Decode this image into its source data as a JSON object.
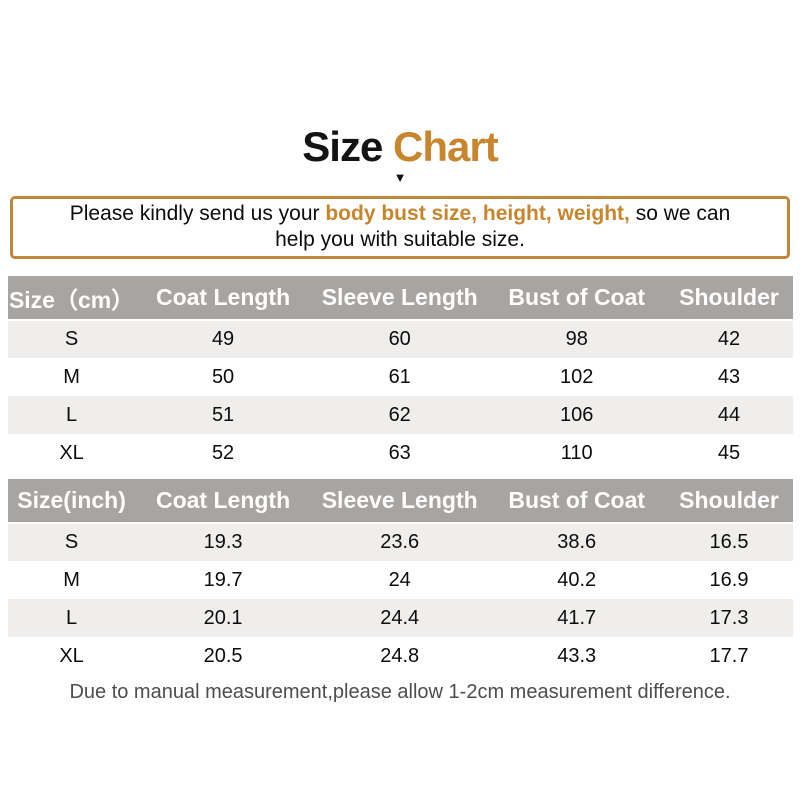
{
  "title": {
    "part1": "Size",
    "part2": "Chart"
  },
  "icons": {
    "down_arrow": "▼"
  },
  "colors": {
    "accent_orange": "#C7862E",
    "box_border": "#C0883F",
    "header_bg": "#A8A4A1",
    "alt_row_bg": "#EFEEEC",
    "footer_text": "#4D4D4D",
    "title_black": "#131313"
  },
  "notice": {
    "line1_prefix": "Please kindly send us your ",
    "line1_highlight": "body bust size, height, weight,",
    "line1_suffix": " so we can",
    "line2": "help you with suitable size."
  },
  "tables": [
    {
      "unit": "cm",
      "headers": [
        "Size（cm）",
        "Coat Length",
        "Sleeve Length",
        "Bust of Coat",
        "Shoulder"
      ],
      "rows": [
        [
          "S",
          "49",
          "60",
          "98",
          "42"
        ],
        [
          "M",
          "50",
          "61",
          "102",
          "43"
        ],
        [
          "L",
          "51",
          "62",
          "106",
          "44"
        ],
        [
          "XL",
          "52",
          "63",
          "110",
          "45"
        ]
      ]
    },
    {
      "unit": "inch",
      "headers": [
        "Size(inch)",
        "Coat Length",
        "Sleeve Length",
        "Bust of Coat",
        "Shoulder"
      ],
      "rows": [
        [
          "S",
          "19.3",
          "23.6",
          "38.6",
          "16.5"
        ],
        [
          "M",
          "19.7",
          "24",
          "40.2",
          "16.9"
        ],
        [
          "L",
          "20.1",
          "24.4",
          "41.7",
          "17.3"
        ],
        [
          "XL",
          "20.5",
          "24.8",
          "43.3",
          "17.7"
        ]
      ]
    }
  ],
  "footer": {
    "note": "Due to manual measurement,please allow 1-2cm measurement difference."
  }
}
